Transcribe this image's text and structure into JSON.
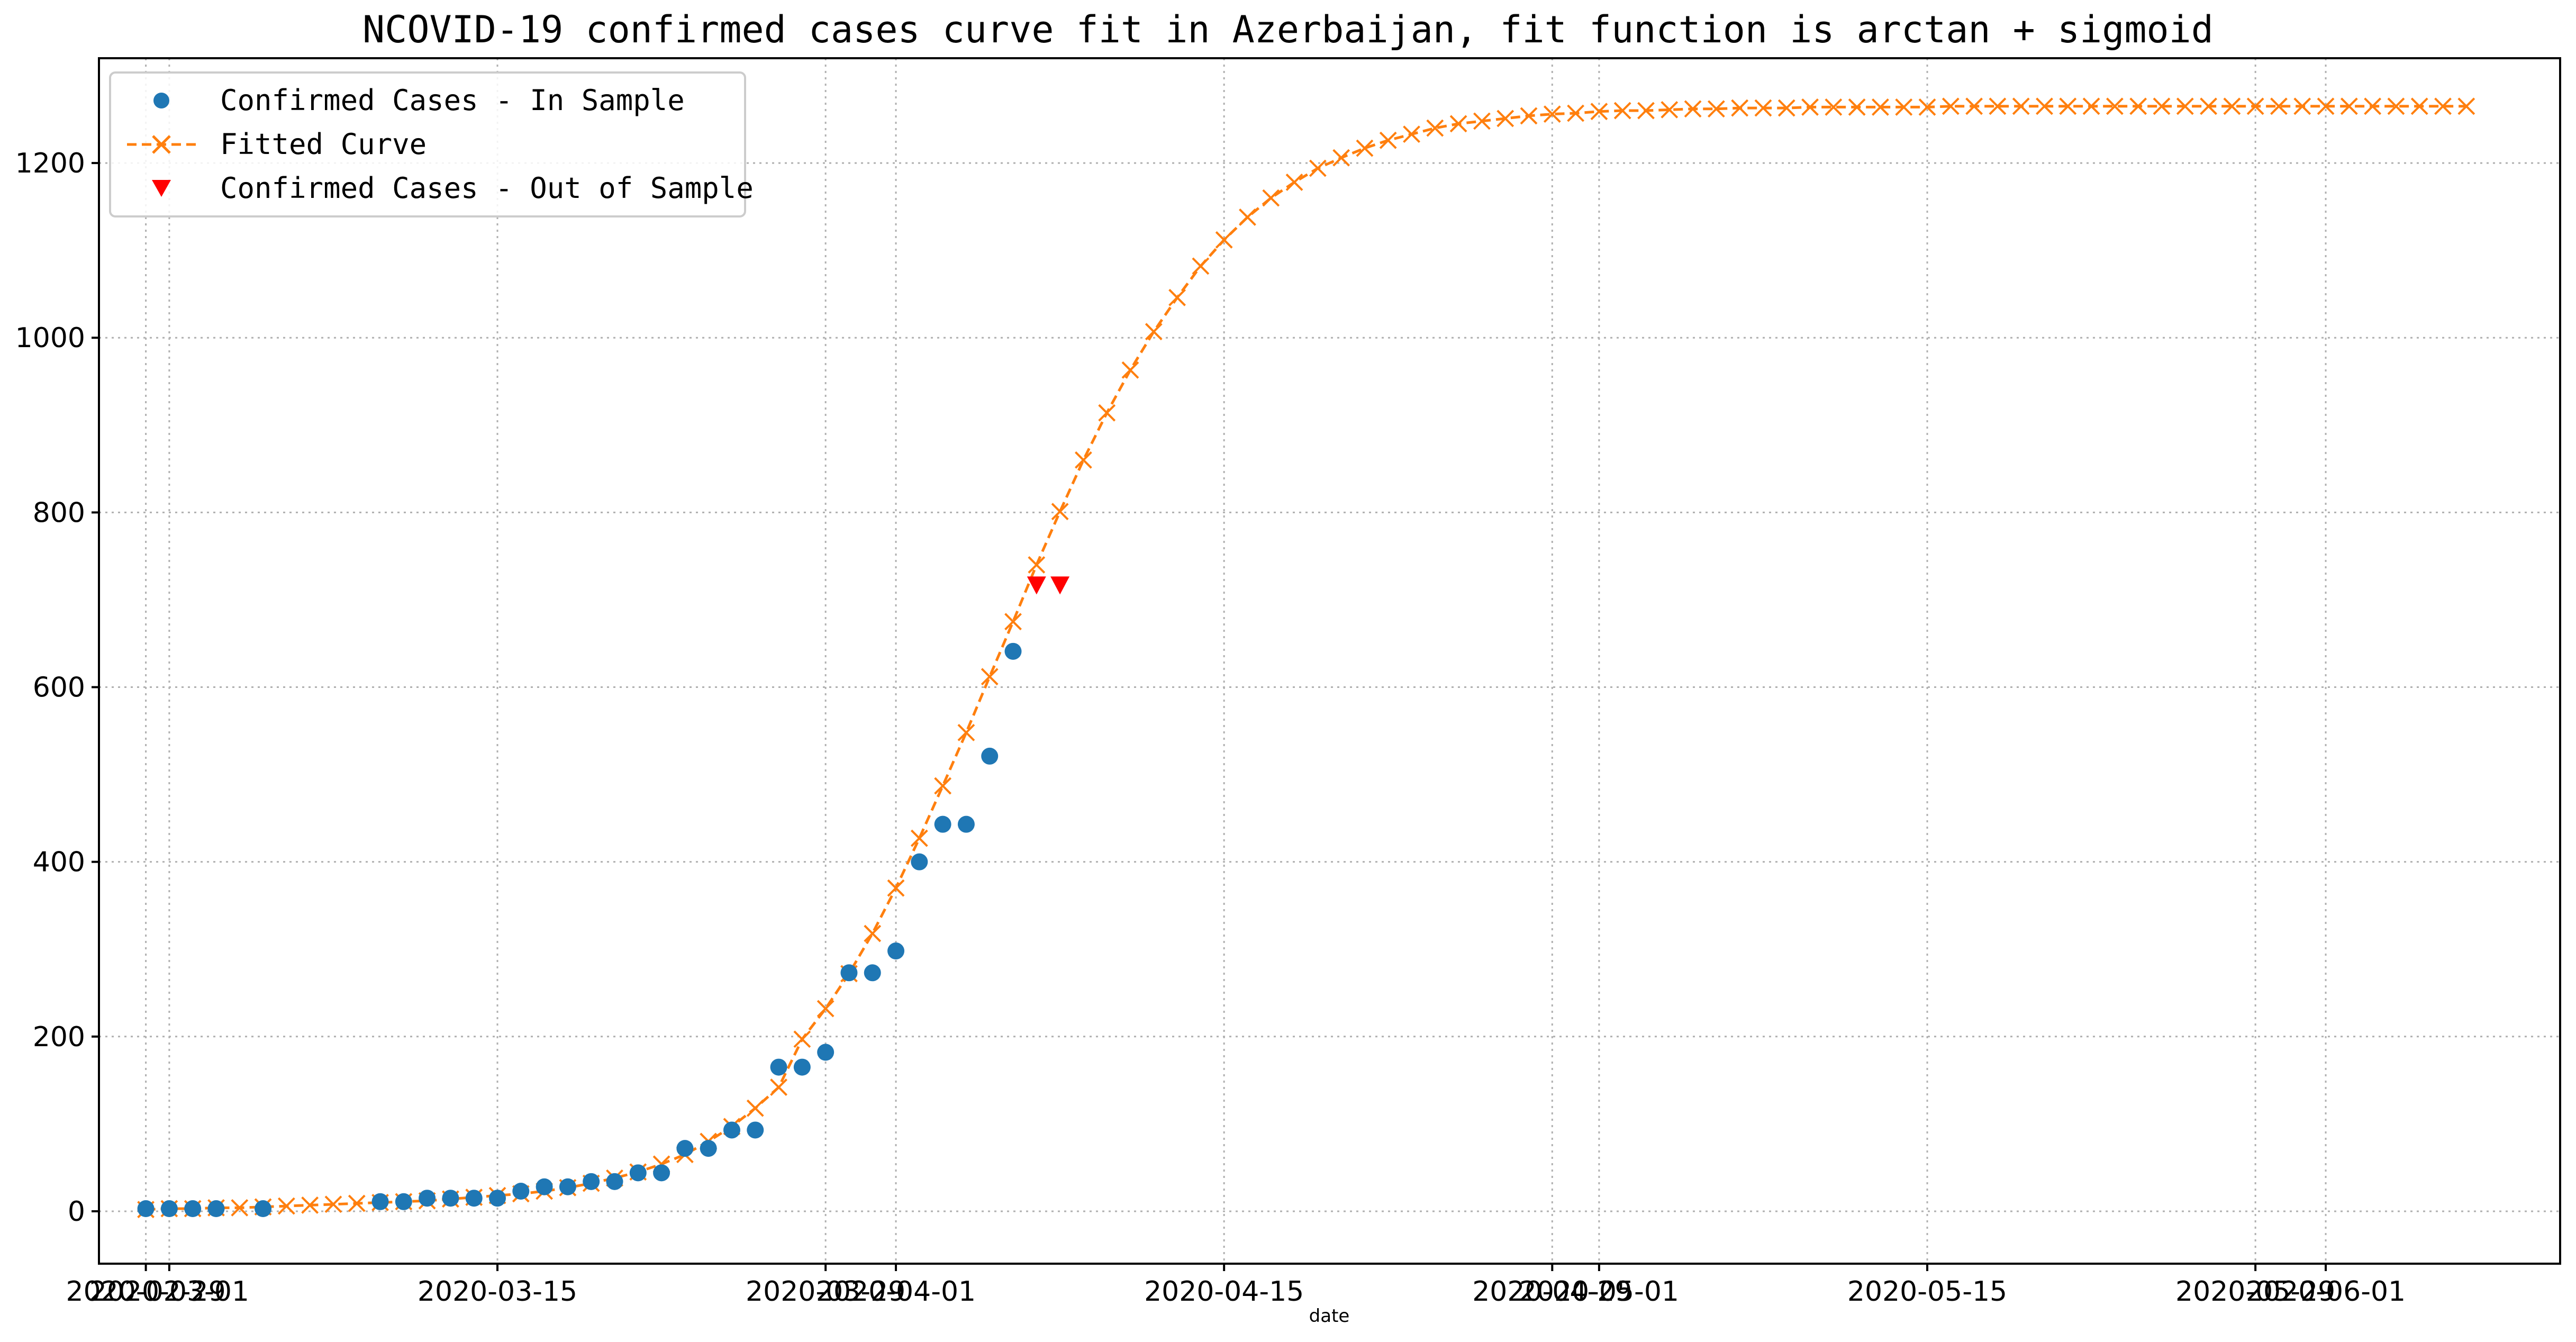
{
  "chart_data": {
    "type": "line",
    "title": "NCOVID-19 confirmed cases curve fit in Azerbaijan, fit function is arctan + sigmoid",
    "xlabel": "date",
    "ylabel": "",
    "xlim": [
      "2020-02-27",
      "2020-06-11"
    ],
    "ylim": [
      -60,
      1320
    ],
    "grid": true,
    "legend_position": "top-left",
    "y_ticks": [
      0,
      200,
      400,
      600,
      800,
      1000,
      1200
    ],
    "x_ticks": [
      {
        "date": "2020-02-29",
        "label": "2020-02-29"
      },
      {
        "date": "2020-03-01",
        "label": "2020-03-01"
      },
      {
        "date": "2020-03-15",
        "label": "2020-03-15"
      },
      {
        "date": "2020-03-29",
        "label": "2020-03-29"
      },
      {
        "date": "2020-04-01",
        "label": "2020-04-01"
      },
      {
        "date": "2020-04-15",
        "label": "2020-04-15"
      },
      {
        "date": "2020-04-29",
        "label": "2020-04-29"
      },
      {
        "date": "2020-05-01",
        "label": "2020-05-01"
      },
      {
        "date": "2020-05-15",
        "label": "2020-05-15"
      },
      {
        "date": "2020-05-29",
        "label": "2020-05-29"
      },
      {
        "date": "2020-06-01",
        "label": "2020-06-01"
      }
    ],
    "series": [
      {
        "name": "Confirmed Cases - In Sample",
        "kind": "scatter",
        "marker": "circle",
        "color": "#1f77b4",
        "points": [
          {
            "x": "2020-02-29",
            "y": 3
          },
          {
            "x": "2020-03-01",
            "y": 3
          },
          {
            "x": "2020-03-02",
            "y": 3
          },
          {
            "x": "2020-03-03",
            "y": 3
          },
          {
            "x": "2020-03-05",
            "y": 3
          },
          {
            "x": "2020-03-10",
            "y": 11
          },
          {
            "x": "2020-03-11",
            "y": 11
          },
          {
            "x": "2020-03-12",
            "y": 15
          },
          {
            "x": "2020-03-13",
            "y": 15
          },
          {
            "x": "2020-03-14",
            "y": 15
          },
          {
            "x": "2020-03-15",
            "y": 15
          },
          {
            "x": "2020-03-16",
            "y": 23
          },
          {
            "x": "2020-03-17",
            "y": 28
          },
          {
            "x": "2020-03-18",
            "y": 28
          },
          {
            "x": "2020-03-19",
            "y": 34
          },
          {
            "x": "2020-03-20",
            "y": 34
          },
          {
            "x": "2020-03-21",
            "y": 44
          },
          {
            "x": "2020-03-22",
            "y": 44
          },
          {
            "x": "2020-03-23",
            "y": 72
          },
          {
            "x": "2020-03-24",
            "y": 72
          },
          {
            "x": "2020-03-25",
            "y": 93
          },
          {
            "x": "2020-03-26",
            "y": 93
          },
          {
            "x": "2020-03-27",
            "y": 165
          },
          {
            "x": "2020-03-28",
            "y": 165
          },
          {
            "x": "2020-03-29",
            "y": 182
          },
          {
            "x": "2020-03-30",
            "y": 273
          },
          {
            "x": "2020-03-31",
            "y": 273
          },
          {
            "x": "2020-04-01",
            "y": 298
          },
          {
            "x": "2020-04-02",
            "y": 400
          },
          {
            "x": "2020-04-03",
            "y": 443
          },
          {
            "x": "2020-04-04",
            "y": 443
          },
          {
            "x": "2020-04-05",
            "y": 521
          },
          {
            "x": "2020-04-06",
            "y": 641
          }
        ]
      },
      {
        "name": "Fitted Curve",
        "kind": "line",
        "marker": "x",
        "line_style": "dashed",
        "color": "#ff7f0e",
        "x_start": "2020-02-29",
        "values": [
          2,
          3,
          3,
          4,
          4,
          5,
          6,
          7,
          8,
          9,
          10,
          11,
          12,
          14,
          16,
          18,
          20,
          23,
          27,
          32,
          38,
          45,
          54,
          65,
          80,
          97,
          118,
          142,
          197,
          232,
          272,
          318,
          370,
          427,
          487,
          548,
          612,
          675,
          740,
          801,
          860,
          914,
          963,
          1007,
          1046,
          1082,
          1112,
          1138,
          1160,
          1178,
          1194,
          1206,
          1217,
          1226,
          1233,
          1240,
          1245,
          1248,
          1251,
          1254,
          1256,
          1257,
          1259,
          1260,
          1260,
          1261,
          1262,
          1262,
          1263,
          1263,
          1263,
          1264,
          1264,
          1264,
          1264,
          1264,
          1264,
          1265,
          1265,
          1265,
          1265,
          1265,
          1265,
          1265,
          1265,
          1265,
          1265,
          1265,
          1265,
          1265,
          1265,
          1265,
          1265,
          1265,
          1265,
          1265,
          1265,
          1265,
          1265,
          1265
        ]
      },
      {
        "name": "Confirmed Cases - Out of Sample",
        "kind": "scatter",
        "marker": "triangle-down",
        "color": "#ff0000",
        "points": [
          {
            "x": "2020-04-07",
            "y": 717
          },
          {
            "x": "2020-04-08",
            "y": 717
          }
        ]
      }
    ]
  }
}
